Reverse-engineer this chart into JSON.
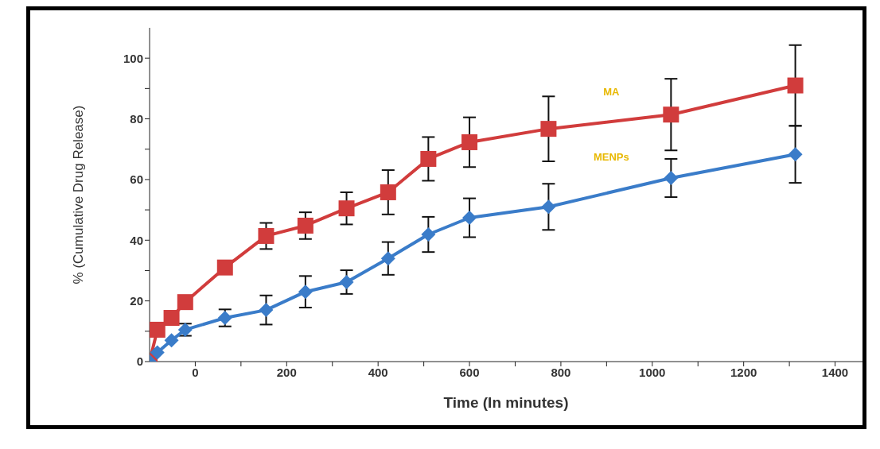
{
  "chart_data": {
    "type": "line",
    "xlabel": "Time (In minutes)",
    "ylabel": "% (Cumulative Drug Release)",
    "x": [
      -100,
      -83,
      -52,
      -22,
      65,
      155,
      241,
      331,
      422,
      510,
      600,
      773,
      1041,
      1313
    ],
    "series": [
      {
        "name": "MA",
        "color": "#d13c3c",
        "marker": "square",
        "values": [
          0,
          10.5,
          14.4,
          19.6,
          31,
          41.4,
          44.8,
          50.5,
          55.8,
          66.8,
          72.3,
          76.7,
          81.4,
          91
        ],
        "errors": [
          null,
          null,
          null,
          null,
          null,
          4.3,
          4.4,
          5.3,
          7.3,
          7.2,
          8.2,
          10.7,
          11.8,
          13.3
        ]
      },
      {
        "name": "MENPs",
        "color": "#3a7cc9",
        "marker": "diamond",
        "values": [
          0,
          3,
          7,
          10.5,
          14.4,
          17,
          23,
          26.2,
          34,
          41.9,
          47.4,
          51,
          60.5,
          68.3
        ],
        "errors": [
          null,
          null,
          null,
          2,
          2.8,
          4.8,
          5.2,
          3.9,
          5.4,
          5.8,
          6.4,
          7.6,
          6.3,
          9.4
        ]
      }
    ],
    "xlim": [
      -100,
      1460
    ],
    "xticks": [
      0,
      {
        "value": 100,
        "label": null
      },
      200,
      {
        "value": 300,
        "label": null
      },
      400,
      {
        "value": 500,
        "label": null
      },
      600,
      {
        "value": 700,
        "label": null
      },
      800,
      {
        "value": 900,
        "label": null
      },
      1000,
      {
        "value": 1100,
        "label": null
      },
      1200,
      {
        "value": 1300,
        "label": null
      },
      1400
    ],
    "ylim": [
      0,
      110
    ],
    "yticks": [
      0,
      {
        "value": 10,
        "label": null
      },
      20,
      {
        "value": 30,
        "label": null
      },
      40,
      {
        "value": 50,
        "label": null
      },
      60,
      {
        "value": 70,
        "label": null
      },
      80,
      {
        "value": 90,
        "label": null
      },
      100
    ],
    "grid": false,
    "legend": false
  }
}
